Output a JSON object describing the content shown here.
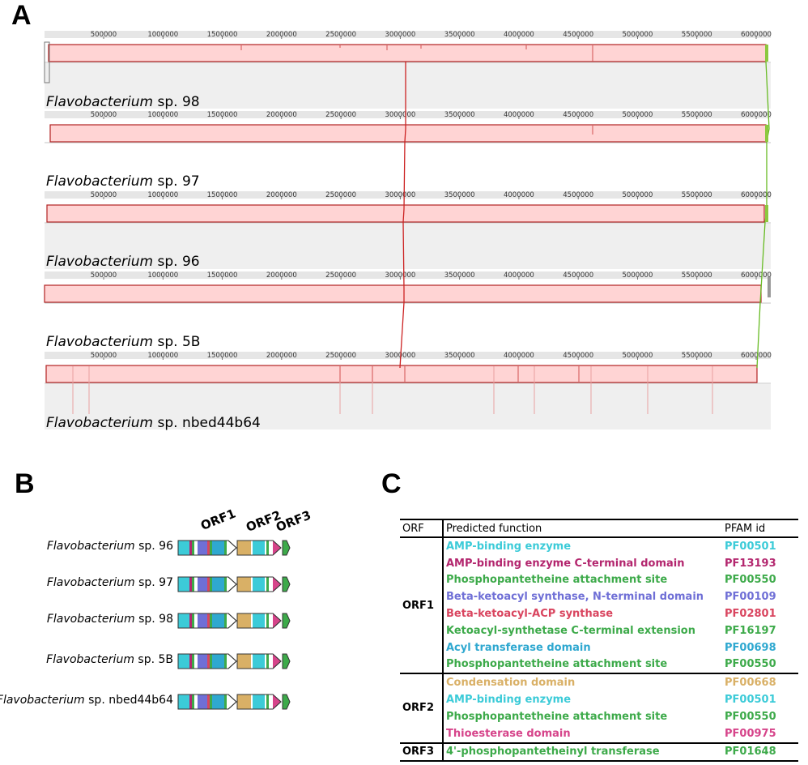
{
  "panels": {
    "a": "A",
    "b": "B",
    "c": "C"
  },
  "panel_a": {
    "ticks": [
      "500000",
      "1000000",
      "1500000",
      "2000000",
      "2500000",
      "3000000",
      "3500000",
      "4000000",
      "4500000",
      "5000000",
      "5500000",
      "6000000"
    ],
    "genomes": [
      {
        "italic": "Flavobacterium",
        "rest": " sp. 98"
      },
      {
        "italic": "Flavobacterium",
        "rest": " sp. 97"
      },
      {
        "italic": "Flavobacterium",
        "rest": " sp. 96"
      },
      {
        "italic": "Flavobacterium",
        "rest": " sp. 5B"
      },
      {
        "italic": "Flavobacterium",
        "rest": " sp. nbed44b64"
      }
    ],
    "colors": {
      "block": "#ffd4d4",
      "block_border": "#b22222",
      "background": "#efefef",
      "red_line": "#cc2222",
      "green_line": "#66bb22"
    }
  },
  "panel_b": {
    "orf_labels": [
      "ORF1",
      "ORF2",
      "ORF3"
    ],
    "strains": [
      {
        "italic": "Flavobacterium",
        "rest": " sp. 96"
      },
      {
        "italic": "Flavobacterium",
        "rest": " sp. 97"
      },
      {
        "italic": "Flavobacterium",
        "rest": " sp. 98"
      },
      {
        "italic": "Flavobacterium",
        "rest": " sp. 5B"
      },
      {
        "italic": "Flavobacterium",
        "rest": " sp. nbed44b64"
      }
    ]
  },
  "panel_c": {
    "headers": {
      "orf": "ORF",
      "function": "Predicted function",
      "pfam": "PFAM id"
    },
    "groups": [
      {
        "orf": "ORF1",
        "rows": [
          {
            "function": "AMP-binding enzyme",
            "pfam": "PF00501",
            "color": "#3ccbd8"
          },
          {
            "function": "AMP-binding enzyme C-terminal domain",
            "pfam": "PF13193",
            "color": "#b3266e"
          },
          {
            "function": "Phosphopantetheine attachment site",
            "pfam": "PF00550",
            "color": "#3daa4a"
          },
          {
            "function": "Beta-ketoacyl synthase, N-terminal domain",
            "pfam": "PF00109",
            "color": "#6f6fd6"
          },
          {
            "function": "Beta-ketoacyl-ACP synthase",
            "pfam": "PF02801",
            "color": "#d9455f"
          },
          {
            "function": "Ketoacyl-synthetase C-terminal extension",
            "pfam": "PF16197",
            "color": "#3daa4a"
          },
          {
            "function": "Acyl transferase domain",
            "pfam": "PF00698",
            "color": "#2fa8d0"
          },
          {
            "function": "Phosphopantetheine attachment site",
            "pfam": "PF00550",
            "color": "#3daa4a"
          }
        ]
      },
      {
        "orf": "ORF2",
        "rows": [
          {
            "function": "Condensation domain",
            "pfam": "PF00668",
            "color": "#d9b066"
          },
          {
            "function": "AMP-binding enzyme",
            "pfam": "PF00501",
            "color": "#3ccbd8"
          },
          {
            "function": "Phosphopantetheine attachment site",
            "pfam": "PF00550",
            "color": "#3daa4a"
          },
          {
            "function": "Thioesterase domain",
            "pfam": "PF00975",
            "color": "#d6448a"
          }
        ]
      },
      {
        "orf": "ORF3",
        "rows": [
          {
            "function": "4'-phosphopantetheinyl transferase",
            "pfam": "PF01648",
            "color": "#3daa4a"
          }
        ]
      }
    ]
  }
}
